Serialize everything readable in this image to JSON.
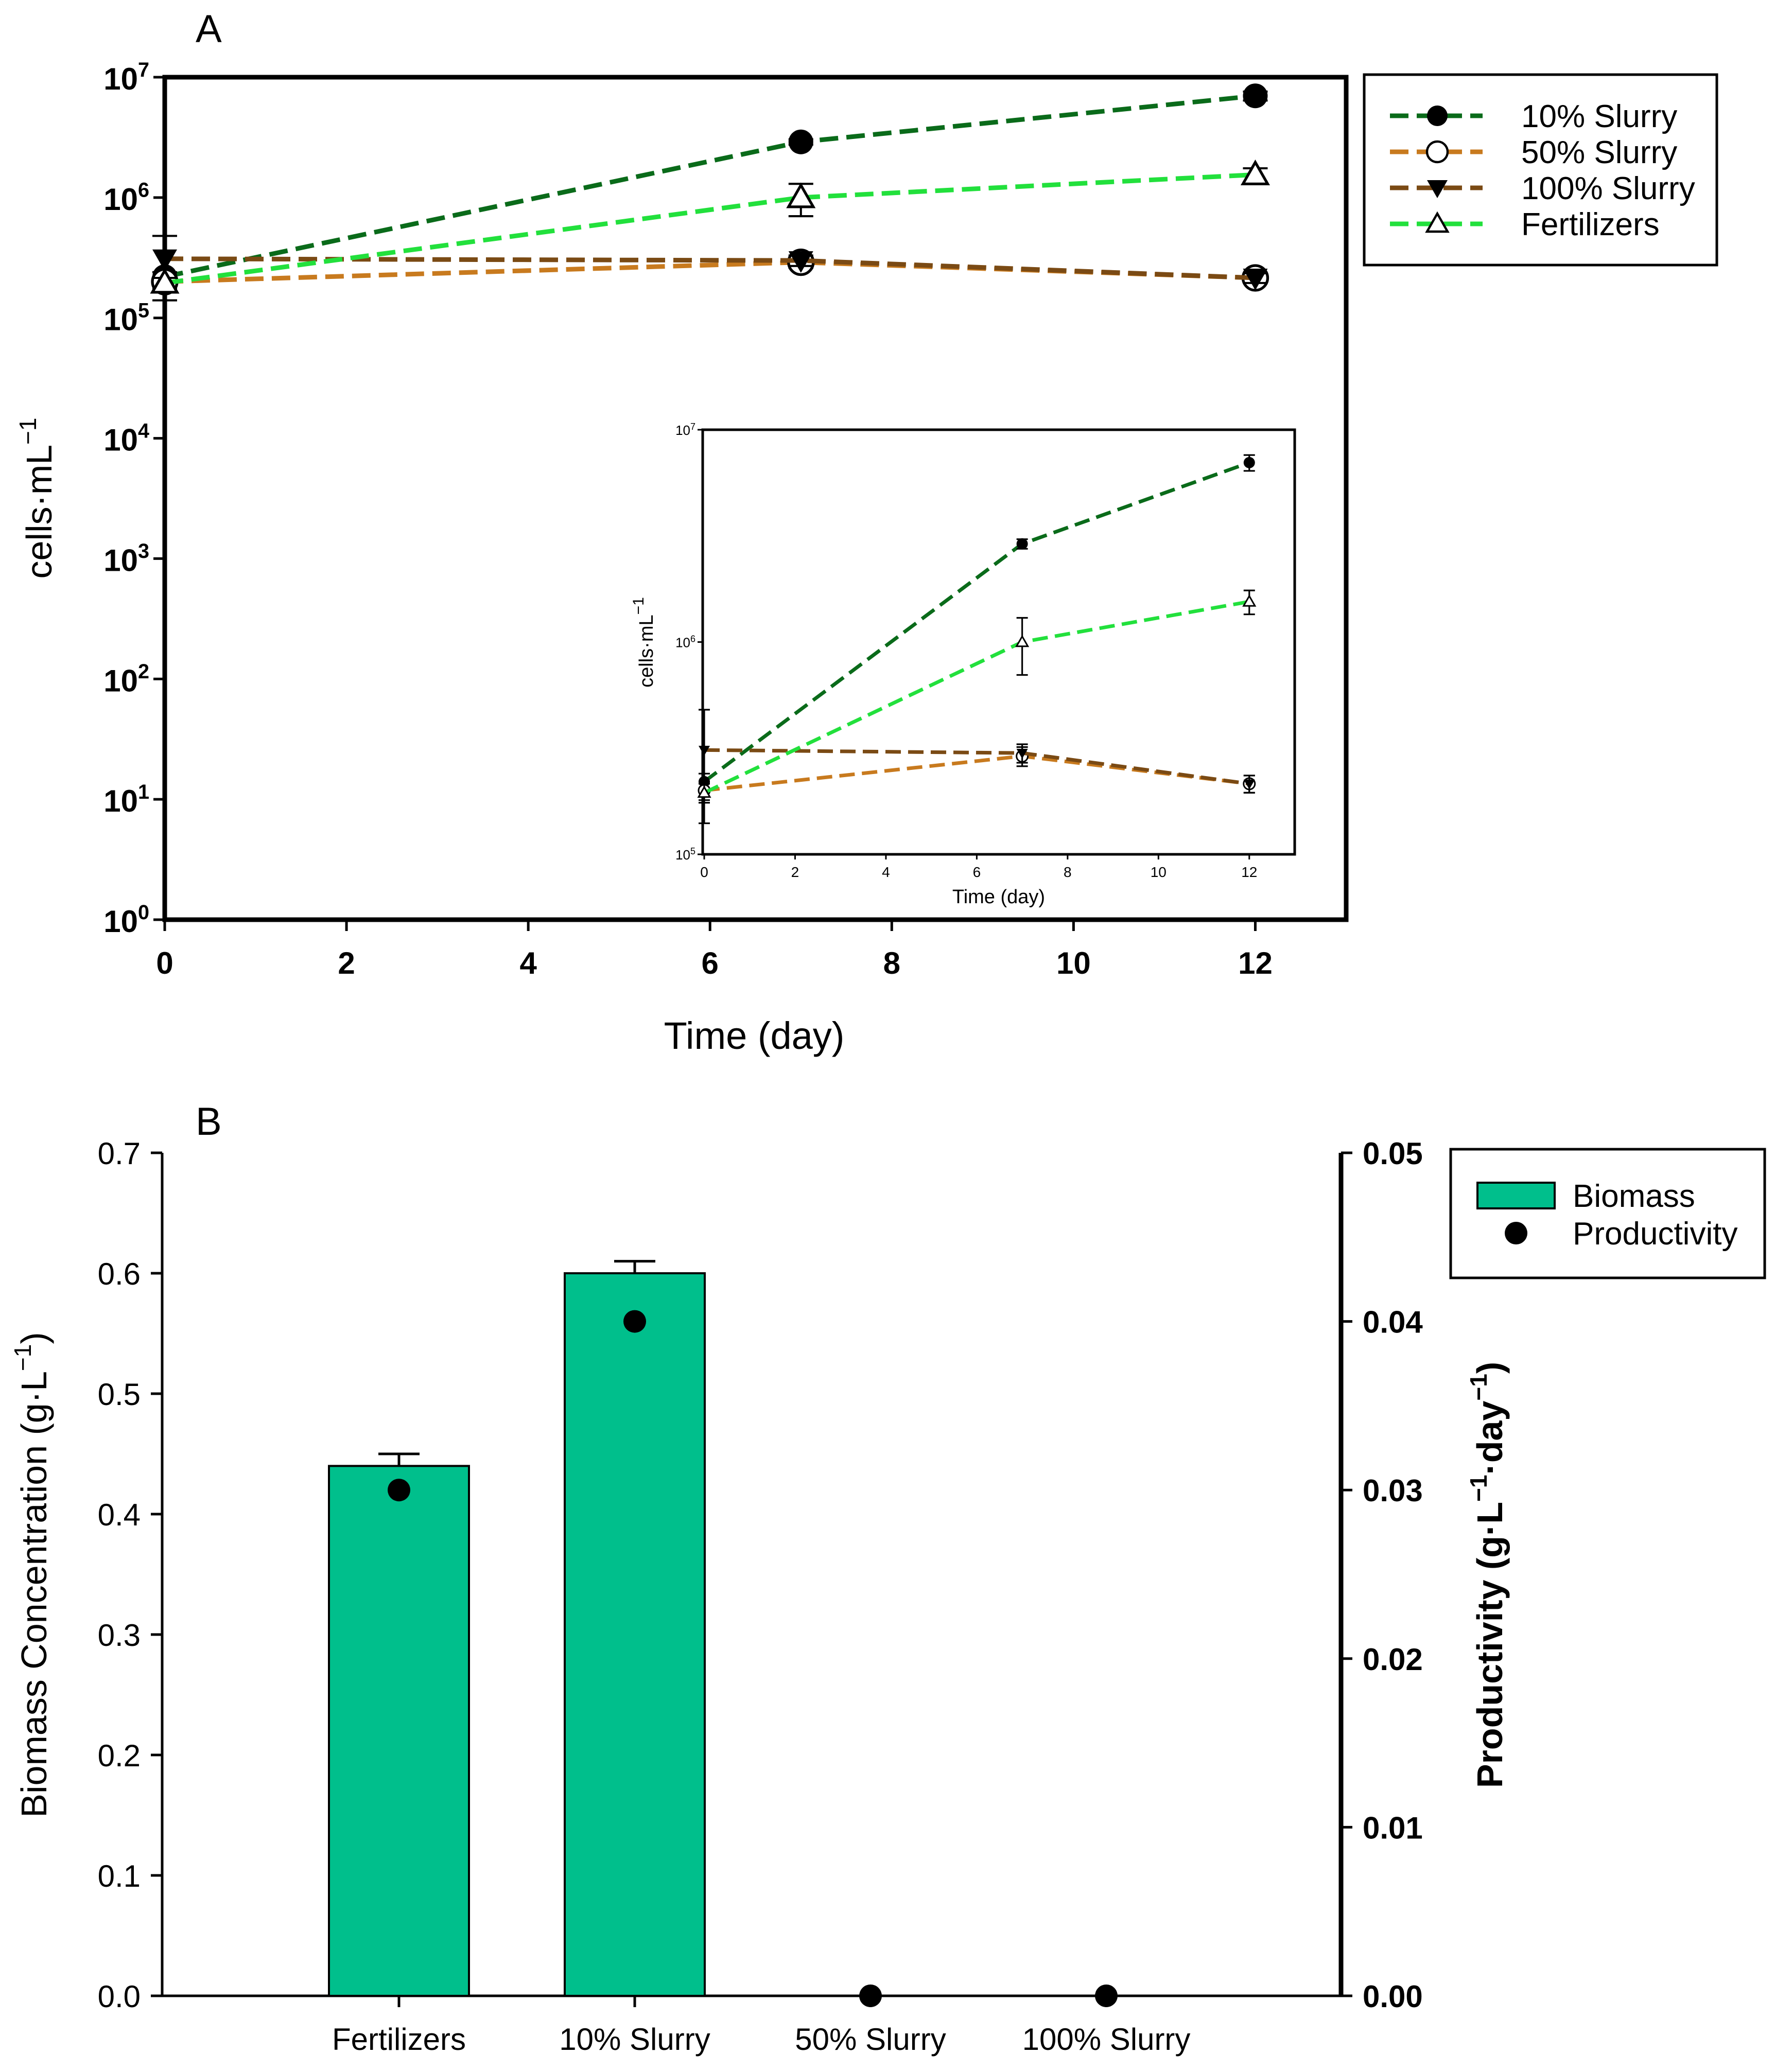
{
  "chart_data": [
    {
      "type": "line",
      "panel_label": "A",
      "title": "",
      "xlabel": "Time (day)",
      "ylabel": "cells·mL",
      "ylabel_exp": "−1",
      "yscale": "log",
      "xlim": [
        0,
        13
      ],
      "ylim": [
        1,
        10000000
      ],
      "xticks": [
        "0",
        "2",
        "4",
        "6",
        "8",
        "10",
        "12"
      ],
      "yticks": [
        {
          "base": "10",
          "exp": "0"
        },
        {
          "base": "10",
          "exp": "1"
        },
        {
          "base": "10",
          "exp": "2"
        },
        {
          "base": "10",
          "exp": "3"
        },
        {
          "base": "10",
          "exp": "4"
        },
        {
          "base": "10",
          "exp": "5"
        },
        {
          "base": "10",
          "exp": "6"
        },
        {
          "base": "10",
          "exp": "7"
        }
      ],
      "legend_position": "outside-top-right",
      "series": [
        {
          "name": "10% Slurry",
          "color": "#0a6b1a",
          "marker": "filled-circle",
          "x": [
            0,
            7,
            12
          ],
          "values": [
            220000,
            2900000,
            7000000
          ],
          "err": [
            20000,
            150000,
            600000
          ]
        },
        {
          "name": "50% Slurry",
          "color": "#c87a1e",
          "marker": "open-circle",
          "x": [
            0,
            7,
            12
          ],
          "values": [
            200000,
            290000,
            215000
          ],
          "err": [
            20000,
            30000,
            20000
          ]
        },
        {
          "name": "100% Slurry",
          "color": "#7a4a14",
          "marker": "filled-triangle-down",
          "x": [
            0,
            7,
            12
          ],
          "values": [
            310000,
            300000,
            215000
          ],
          "err": [
            170000,
            30000,
            20000
          ]
        },
        {
          "name": "Fertilizers",
          "color": "#22e03c",
          "marker": "open-triangle-up",
          "x": [
            0,
            7,
            12
          ],
          "values": [
            195000,
            1000000,
            1550000
          ],
          "err": [
            20000,
            300000,
            200000
          ]
        }
      ],
      "inset": {
        "xlabel": "Time (day)",
        "ylabel": "cells·mL",
        "ylabel_exp": "−1",
        "yscale": "log",
        "xlim": [
          0,
          13
        ],
        "ylim": [
          100000,
          10000000
        ],
        "xticks": [
          "0",
          "2",
          "4",
          "6",
          "8",
          "10",
          "12"
        ],
        "yticks": [
          {
            "base": "10",
            "exp": "5"
          },
          {
            "base": "10",
            "exp": "6"
          },
          {
            "base": "10",
            "exp": "7"
          }
        ]
      }
    },
    {
      "type": "bar",
      "panel_label": "B",
      "title": "",
      "xlabel": "",
      "ylabel": "Biomass Concentration (g·L",
      "ylabel_exp": "−1",
      "ylabel_end": ")",
      "y2label": "Productivity (g·L",
      "y2label_exp1": "−1",
      "y2label_mid": "·day",
      "y2label_exp2": "−1",
      "y2label_end": ")",
      "categories": [
        "Fertilizers",
        "10% Slurry",
        "50% Slurry",
        "100% Slurry"
      ],
      "ylim": [
        0,
        0.7
      ],
      "y2lim": [
        0,
        0.05
      ],
      "yticks": [
        "0.0",
        "0.1",
        "0.2",
        "0.3",
        "0.4",
        "0.5",
        "0.6",
        "0.7"
      ],
      "y2ticks": [
        "0.00",
        "0.01",
        "0.02",
        "0.03",
        "0.04",
        "0.05"
      ],
      "legend_position": "outside-top-right",
      "series": [
        {
          "name": "Biomass",
          "axis": "left",
          "kind": "bar",
          "color": "#00bf8c",
          "values": [
            0.44,
            0.6,
            0,
            0
          ],
          "err": [
            0.01,
            0.01,
            0,
            0
          ]
        },
        {
          "name": "Productivity",
          "axis": "right",
          "kind": "scatter",
          "color": "#000000",
          "values": [
            0.03,
            0.04,
            0,
            0
          ]
        }
      ]
    }
  ]
}
